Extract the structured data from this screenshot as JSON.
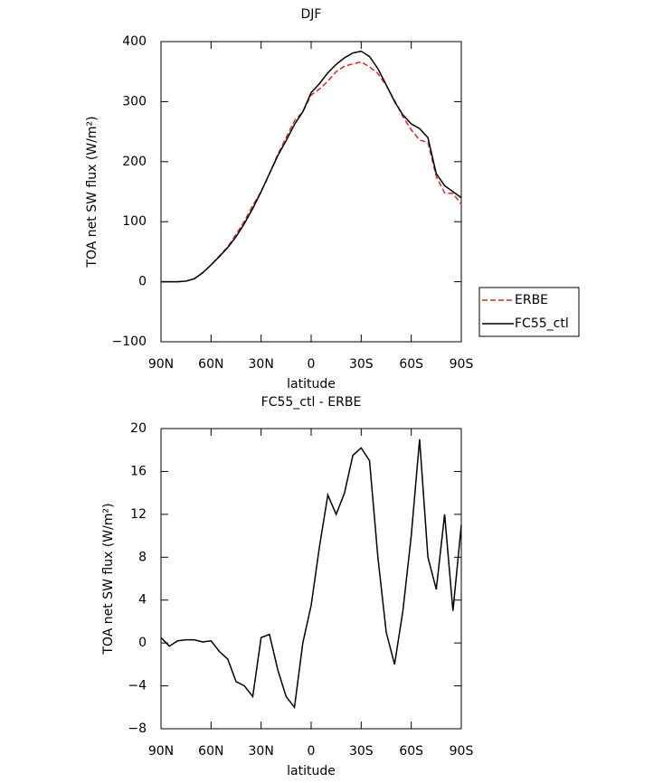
{
  "chart_data": [
    {
      "type": "line",
      "title": "DJF",
      "xlabel": "latitude",
      "ylabel": "TOA net SW flux (W/m²)",
      "x": [
        90,
        85,
        80,
        75,
        70,
        65,
        60,
        55,
        50,
        45,
        40,
        35,
        30,
        25,
        20,
        15,
        10,
        5,
        0,
        -5,
        -10,
        -15,
        -20,
        -25,
        -30,
        -35,
        -40,
        -45,
        -50,
        -55,
        -60,
        -65,
        -70,
        -75,
        -80,
        -85,
        -90
      ],
      "series": [
        {
          "name": "ERBE",
          "color": "#e8231f",
          "dash": true,
          "values": [
            0,
            0,
            0,
            1,
            5,
            15,
            28,
            43,
            58,
            79,
            101,
            127,
            150,
            180,
            212,
            240,
            268,
            283,
            311,
            321,
            334,
            350,
            359,
            363,
            366,
            358,
            347,
            327,
            302,
            275,
            253,
            236,
            232,
            175,
            148,
            147,
            129
          ]
        },
        {
          "name": "FC55_ctl",
          "color": "#000000",
          "dash": false,
          "values": [
            0,
            0,
            0,
            1,
            5,
            15,
            28,
            42,
            57,
            75,
            97,
            122,
            150,
            180,
            210,
            235,
            262,
            283,
            315,
            330,
            348,
            362,
            373,
            381,
            384,
            375,
            355,
            328,
            300,
            278,
            263,
            255,
            240,
            180,
            160,
            150,
            140
          ]
        }
      ],
      "xlim": [
        90,
        -90
      ],
      "xticks": [
        {
          "value": 90,
          "label": "90N"
        },
        {
          "value": 60,
          "label": "60N"
        },
        {
          "value": 30,
          "label": "30N"
        },
        0,
        {
          "value": -30,
          "label": "30S"
        },
        {
          "value": -60,
          "label": "60S"
        },
        {
          "value": -90,
          "label": "90S"
        }
      ],
      "ylim": [
        -100,
        400
      ],
      "yticks": [
        {
          "value": -100,
          "label": "−100"
        },
        0,
        100,
        200,
        300,
        400
      ],
      "legend": "outside right"
    },
    {
      "type": "line",
      "title": "FC55_ctl - ERBE",
      "xlabel": "latitude",
      "ylabel": "TOA net SW flux (W/m²)",
      "x": [
        90,
        85,
        80,
        75,
        70,
        65,
        60,
        55,
        50,
        45,
        40,
        35,
        30,
        25,
        20,
        15,
        10,
        5,
        0,
        -5,
        -10,
        -15,
        -20,
        -25,
        -30,
        -35,
        -40,
        -45,
        -50,
        -55,
        -60,
        -65,
        -70,
        -75,
        -80,
        -85,
        -90
      ],
      "series": [
        {
          "color": "#000000",
          "dash": false,
          "values": [
            0.5,
            -0.3,
            0.2,
            0.3,
            0.3,
            0.1,
            0.2,
            -0.8,
            -1.5,
            -3.6,
            -4,
            -5,
            0.5,
            0.8,
            -2.5,
            -5,
            -6,
            0,
            3.5,
            9,
            13.8,
            12,
            14,
            17.5,
            18.2,
            17,
            8,
            1,
            -2,
            3,
            10,
            19,
            8,
            5,
            12,
            3,
            11
          ]
        }
      ],
      "xlim": [
        90,
        -90
      ],
      "xticks": [
        {
          "value": 90,
          "label": "90N"
        },
        {
          "value": 60,
          "label": "60N"
        },
        {
          "value": 30,
          "label": "30N"
        },
        0,
        {
          "value": -30,
          "label": "30S"
        },
        {
          "value": -60,
          "label": "60S"
        },
        {
          "value": -90,
          "label": "90S"
        }
      ],
      "ylim": [
        -8,
        20
      ],
      "yticks": [
        {
          "value": -8,
          "label": "−8"
        },
        {
          "value": -4,
          "label": "−4"
        },
        0,
        4,
        8,
        12,
        16,
        20
      ]
    }
  ]
}
